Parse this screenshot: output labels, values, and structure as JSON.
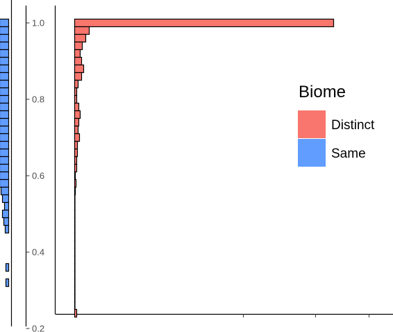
{
  "chart_data": {
    "type": "bar",
    "orientation": "horizontal",
    "ylim": [
      0.2,
      1.03
    ],
    "y_ticks": [
      {
        "value": 1.0,
        "label": "1.0"
      },
      {
        "value": 0.8,
        "label": "0.8"
      },
      {
        "value": 0.6,
        "label": "0.6"
      },
      {
        "value": 0.4,
        "label": "0.4"
      },
      {
        "value": 0.2,
        "label": "0.2"
      }
    ],
    "bin_width": 0.02,
    "series": [
      {
        "name": "Distinct",
        "color": "#F8766D",
        "bars": [
          {
            "y": 1.0,
            "x": 373
          },
          {
            "y": 0.98,
            "x": 21
          },
          {
            "y": 0.96,
            "x": 16
          },
          {
            "y": 0.94,
            "x": 11
          },
          {
            "y": 0.92,
            "x": 8
          },
          {
            "y": 0.9,
            "x": 10
          },
          {
            "y": 0.88,
            "x": 13
          },
          {
            "y": 0.86,
            "x": 10
          },
          {
            "y": 0.84,
            "x": 5
          },
          {
            "y": 0.82,
            "x": 3
          },
          {
            "y": 0.8,
            "x": 3
          },
          {
            "y": 0.78,
            "x": 6
          },
          {
            "y": 0.76,
            "x": 8
          },
          {
            "y": 0.74,
            "x": 6
          },
          {
            "y": 0.72,
            "x": 5
          },
          {
            "y": 0.7,
            "x": 7
          },
          {
            "y": 0.68,
            "x": 4
          },
          {
            "y": 0.66,
            "x": 4
          },
          {
            "y": 0.64,
            "x": 3
          },
          {
            "y": 0.62,
            "x": 3
          },
          {
            "y": 0.6,
            "x": 1
          },
          {
            "y": 0.58,
            "x": 2
          },
          {
            "y": 0.56,
            "x": 1
          },
          {
            "y": 0.54,
            "x": 0.5
          },
          {
            "y": 0.52,
            "x": 0.5
          },
          {
            "y": 0.5,
            "x": 0.5
          },
          {
            "y": 0.48,
            "x": 0.5
          },
          {
            "y": 0.46,
            "x": 0.5
          },
          {
            "y": 0.44,
            "x": 0.5
          },
          {
            "y": 0.42,
            "x": 0.5
          },
          {
            "y": 0.4,
            "x": 0.5
          },
          {
            "y": 0.38,
            "x": 0.5
          },
          {
            "y": 0.36,
            "x": 0.5
          },
          {
            "y": 0.34,
            "x": 0.5
          },
          {
            "y": 0.32,
            "x": 0.5
          },
          {
            "y": 0.3,
            "x": 0.5
          },
          {
            "y": 0.28,
            "x": 0.5
          },
          {
            "y": 0.26,
            "x": 0.5
          },
          {
            "y": 0.24,
            "x": 3
          }
        ]
      },
      {
        "name": "Same",
        "color": "#619CFF",
        "bars": [
          {
            "y": 1.0,
            "x": 13
          },
          {
            "y": 0.98,
            "x": 13
          },
          {
            "y": 0.96,
            "x": 13
          },
          {
            "y": 0.94,
            "x": 13
          },
          {
            "y": 0.92,
            "x": 13
          },
          {
            "y": 0.9,
            "x": 13
          },
          {
            "y": 0.88,
            "x": 13
          },
          {
            "y": 0.86,
            "x": 13
          },
          {
            "y": 0.84,
            "x": 13
          },
          {
            "y": 0.82,
            "x": 13
          },
          {
            "y": 0.8,
            "x": 13
          },
          {
            "y": 0.78,
            "x": 13
          },
          {
            "y": 0.76,
            "x": 13
          },
          {
            "y": 0.74,
            "x": 13
          },
          {
            "y": 0.72,
            "x": 13
          },
          {
            "y": 0.7,
            "x": 13
          },
          {
            "y": 0.68,
            "x": 13
          },
          {
            "y": 0.66,
            "x": 13
          },
          {
            "y": 0.64,
            "x": 13
          },
          {
            "y": 0.62,
            "x": 13
          },
          {
            "y": 0.6,
            "x": 13
          },
          {
            "y": 0.58,
            "x": 13
          },
          {
            "y": 0.56,
            "x": 11
          },
          {
            "y": 0.54,
            "x": 9
          },
          {
            "y": 0.52,
            "x": 6
          },
          {
            "y": 0.5,
            "x": 9
          },
          {
            "y": 0.48,
            "x": 7
          },
          {
            "y": 0.46,
            "x": 5
          },
          {
            "y": 0.36,
            "x": 4
          },
          {
            "y": 0.32,
            "x": 4
          }
        ]
      }
    ],
    "legend": {
      "title": "Biome",
      "placement": "right",
      "entries": [
        {
          "label": "Distinct",
          "color": "#F8766D"
        },
        {
          "label": "Same",
          "color": "#619CFF"
        }
      ]
    },
    "grid": false
  }
}
